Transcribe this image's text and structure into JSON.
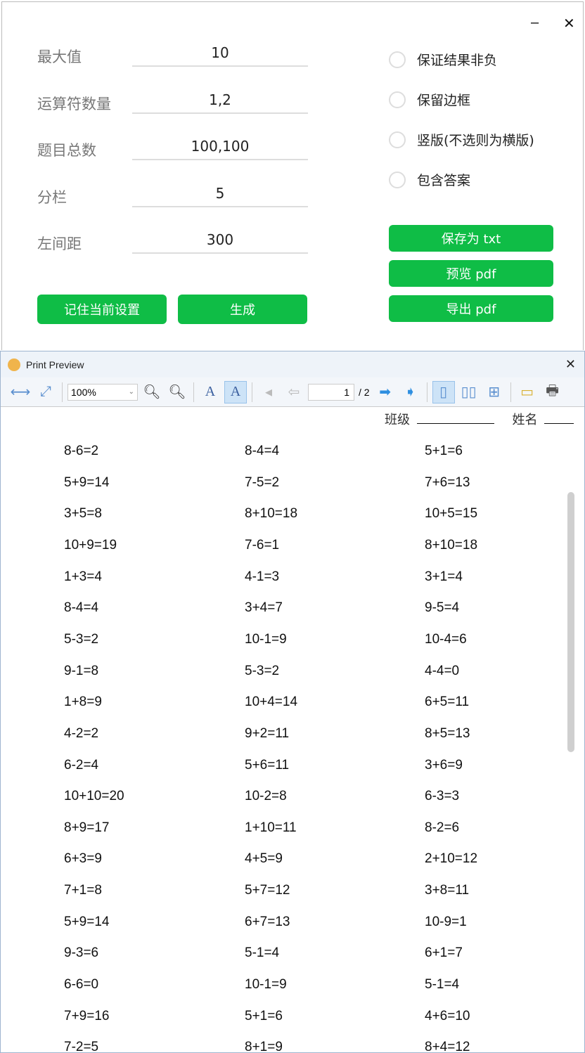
{
  "window": {
    "minimize": "–",
    "close": "✕"
  },
  "settings": [
    {
      "label": "最大值",
      "value": "10"
    },
    {
      "label": "运算符数量",
      "value": "1,2"
    },
    {
      "label": "题目总数",
      "value": "100,100"
    },
    {
      "label": "分栏",
      "value": "5"
    },
    {
      "label": "左间距",
      "value": "300"
    }
  ],
  "options": [
    {
      "label": "保证结果非负"
    },
    {
      "label": "保留边框"
    },
    {
      "label": "竖版(不选则为横版)"
    },
    {
      "label": "包含答案"
    }
  ],
  "buttons": {
    "remember": "记住当前设置",
    "generate": "生成",
    "save_txt": "保存为 txt",
    "preview_pdf": "预览 pdf",
    "export_pdf": "导出 pdf"
  },
  "accent": "#0fbd46",
  "preview": {
    "title": "Print Preview",
    "close": "✕",
    "zoom": "100%",
    "page": "1",
    "total": "/ 2",
    "class_label": "班级",
    "name_label": "姓名",
    "rows": [
      [
        "8-6=2",
        "8-4=4",
        "5+1=6"
      ],
      [
        "5+9=14",
        "7-5=2",
        "7+6=13"
      ],
      [
        "3+5=8",
        "8+10=18",
        "10+5=15"
      ],
      [
        "10+9=19",
        "7-6=1",
        "8+10=18"
      ],
      [
        "1+3=4",
        "4-1=3",
        "3+1=4"
      ],
      [
        "8-4=4",
        "3+4=7",
        "9-5=4"
      ],
      [
        "5-3=2",
        "10-1=9",
        "10-4=6"
      ],
      [
        "9-1=8",
        "5-3=2",
        "4-4=0"
      ],
      [
        "1+8=9",
        "10+4=14",
        "6+5=11"
      ],
      [
        "4-2=2",
        "9+2=11",
        "8+5=13"
      ],
      [
        "6-2=4",
        "5+6=11",
        "3+6=9"
      ],
      [
        "10+10=20",
        "10-2=8",
        "6-3=3"
      ],
      [
        "8+9=17",
        "1+10=11",
        "8-2=6"
      ],
      [
        "6+3=9",
        "4+5=9",
        "2+10=12"
      ],
      [
        "7+1=8",
        "5+7=12",
        "3+8=11"
      ],
      [
        "5+9=14",
        "6+7=13",
        "10-9=1"
      ],
      [
        "9-3=6",
        "5-1=4",
        "6+1=7"
      ],
      [
        "6-6=0",
        "10-1=9",
        "5-1=4"
      ],
      [
        "7+9=16",
        "5+1=6",
        "4+6=10"
      ],
      [
        "7-2=5",
        "8+1=9",
        "8+4=12"
      ]
    ]
  }
}
